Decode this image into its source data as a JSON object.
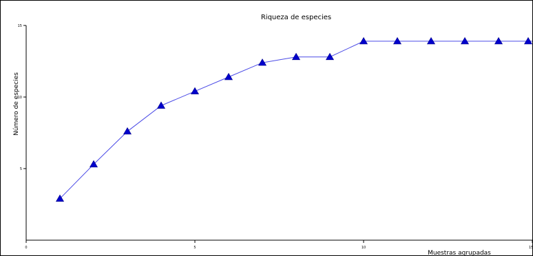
{
  "chart_data": {
    "type": "line",
    "title": "Riqueza de especies",
    "xlabel": "Muestras agrupadas",
    "ylabel": "Número de especies",
    "xlim": [
      0,
      15
    ],
    "ylim": [
      0,
      15
    ],
    "x_ticks": [
      0,
      5,
      10,
      15
    ],
    "y_ticks": [
      5,
      10,
      15
    ],
    "grid": false,
    "series": [
      {
        "marker": "triangle",
        "color": "#0000cc",
        "line_color": "#4a4ae6",
        "x": [
          1,
          2,
          3,
          4,
          5,
          6,
          7,
          8,
          9,
          10,
          11,
          12,
          13,
          14,
          15
        ],
        "y": [
          2.9,
          5.3,
          7.6,
          9.4,
          10.4,
          11.4,
          12.4,
          12.8,
          12.8,
          13.9,
          13.9,
          13.9,
          13.9,
          13.9,
          13.9
        ]
      }
    ]
  }
}
